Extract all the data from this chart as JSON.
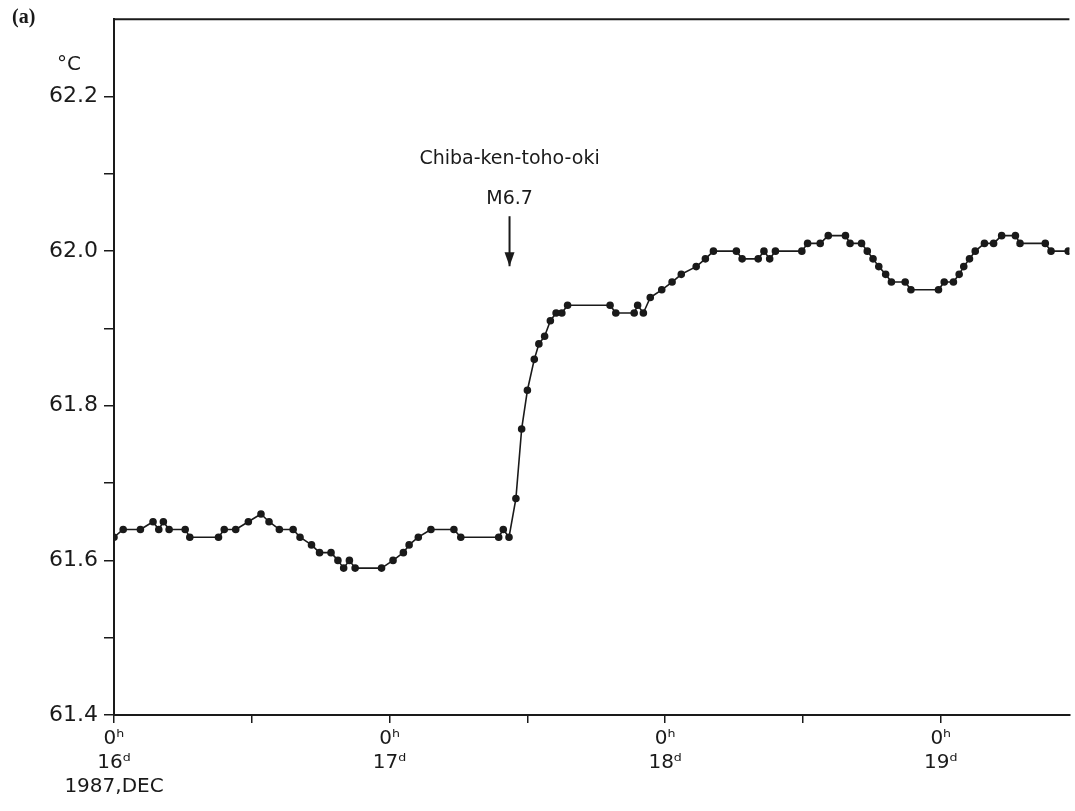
{
  "chart_data": {
    "type": "line",
    "ylabel": "°C",
    "annotations": [
      "(a)",
      "M6.7",
      "Chiba-ken-toho-oki"
    ],
    "x": [
      "1987-12-16T00:00",
      "1987-12-16T00:48",
      "1987-12-16T02:18",
      "1987-12-16T03:24",
      "1987-12-16T03:54",
      "1987-12-16T04:18",
      "1987-12-16T04:48",
      "1987-12-16T06:12",
      "1987-12-16T06:36",
      "1987-12-16T09:06",
      "1987-12-16T09:36",
      "1987-12-16T10:36",
      "1987-12-16T11:42",
      "1987-12-16T12:48",
      "1987-12-16T13:30",
      "1987-12-16T14:24",
      "1987-12-16T15:36",
      "1987-12-16T16:12",
      "1987-12-16T17:12",
      "1987-12-16T17:54",
      "1987-12-16T18:54",
      "1987-12-16T19:30",
      "1987-12-16T20:00",
      "1987-12-16T20:30",
      "1987-12-16T21:00",
      "1987-12-16T23:18",
      "1987-12-17T00:18",
      "1987-12-17T01:12",
      "1987-12-17T01:42",
      "1987-12-17T02:30",
      "1987-12-17T03:36",
      "1987-12-17T05:36",
      "1987-12-17T06:12",
      "1987-12-17T09:30",
      "1987-12-17T09:54",
      "1987-12-17T10:24",
      "1987-12-17T11:00",
      "1987-12-17T11:30",
      "1987-12-17T12:00",
      "1987-12-17T12:36",
      "1987-12-17T13:00",
      "1987-12-17T13:30",
      "1987-12-17T14:00",
      "1987-12-17T14:30",
      "1987-12-17T15:00",
      "1987-12-17T15:30",
      "1987-12-17T19:12",
      "1987-12-17T19:42",
      "1987-12-17T21:18",
      "1987-12-17T21:36",
      "1987-12-17T22:06",
      "1987-12-17T22:42",
      "1987-12-17T23:42",
      "1987-12-18T00:36",
      "1987-12-18T01:24",
      "1987-12-18T02:42",
      "1987-12-18T03:30",
      "1987-12-18T04:12",
      "1987-12-18T06:12",
      "1987-12-18T06:42",
      "1987-12-18T08:06",
      "1987-12-18T08:36",
      "1987-12-18T09:06",
      "1987-12-18T09:36",
      "1987-12-18T11:54",
      "1987-12-18T12:24",
      "1987-12-18T13:30",
      "1987-12-18T14:12",
      "1987-12-18T15:42",
      "1987-12-18T16:06",
      "1987-12-18T17:06",
      "1987-12-18T17:36",
      "1987-12-18T18:06",
      "1987-12-18T18:36",
      "1987-12-18T19:12",
      "1987-12-18T19:42",
      "1987-12-18T20:54",
      "1987-12-18T21:24",
      "1987-12-18T23:48",
      "1987-12-19T00:18",
      "1987-12-19T01:06",
      "1987-12-19T01:36",
      "1987-12-19T02:00",
      "1987-12-19T02:30",
      "1987-12-19T03:00",
      "1987-12-19T03:48",
      "1987-12-19T04:36",
      "1987-12-19T05:18",
      "1987-12-19T06:30",
      "1987-12-19T06:54",
      "1987-12-19T09:06",
      "1987-12-19T09:36",
      "1987-12-19T11:06"
    ],
    "series": [
      {
        "color": "#1a1a1a",
        "values": [
          61.63,
          61.64,
          61.64,
          61.65,
          61.64,
          61.65,
          61.64,
          61.64,
          61.63,
          61.63,
          61.64,
          61.64,
          61.65,
          61.66,
          61.65,
          61.64,
          61.64,
          61.63,
          61.62,
          61.61,
          61.61,
          61.6,
          61.59,
          61.6,
          61.59,
          61.59,
          61.6,
          61.61,
          61.62,
          61.63,
          61.64,
          61.64,
          61.63,
          61.63,
          61.64,
          61.63,
          61.68,
          61.77,
          61.82,
          61.86,
          61.88,
          61.89,
          61.91,
          61.92,
          61.92,
          61.93,
          61.93,
          61.92,
          61.92,
          61.93,
          61.92,
          61.94,
          61.95,
          61.96,
          61.97,
          61.98,
          61.99,
          62.0,
          62.0,
          61.99,
          61.99,
          62.0,
          61.99,
          62.0,
          62.0,
          62.01,
          62.01,
          62.02,
          62.02,
          62.01,
          62.01,
          62.0,
          61.99,
          61.98,
          61.97,
          61.96,
          61.96,
          61.95,
          61.95,
          61.96,
          61.96,
          61.97,
          61.98,
          61.99,
          62.0,
          62.01,
          62.01,
          62.02,
          62.02,
          62.01,
          62.01,
          62.0,
          62.0
        ]
      }
    ],
    "xlim": [
      "1987-12-16",
      "1987-12-19T11:12"
    ],
    "xticks": [
      {
        "value": "1987-12-16",
        "label": "0ʰ\n16ᵈ\n1987,DEC"
      },
      {
        "value": "1987-12-16T12:00",
        "label": null
      },
      {
        "value": "1987-12-17",
        "label": "0ʰ\n17ᵈ"
      },
      {
        "value": "1987-12-17T12:00",
        "label": null
      },
      {
        "value": "1987-12-18",
        "label": "0ʰ\n18ᵈ"
      },
      {
        "value": "1987-12-18T12:00",
        "label": null
      },
      {
        "value": "1987-12-19",
        "label": "0ʰ\n19ᵈ"
      }
    ],
    "ylim": [
      61.4,
      62.3
    ],
    "yticks": [
      61.4,
      {
        "value": 61.5,
        "label": null
      },
      61.6,
      {
        "value": 61.7,
        "label": null
      },
      61.8,
      {
        "value": 61.9,
        "label": null
      },
      {
        "value": 62,
        "label": "62.0"
      },
      {
        "value": 62.1,
        "label": null
      },
      62.2
    ],
    "grid": false,
    "legend": false,
    "marker": "circle",
    "line_style": "solid"
  }
}
